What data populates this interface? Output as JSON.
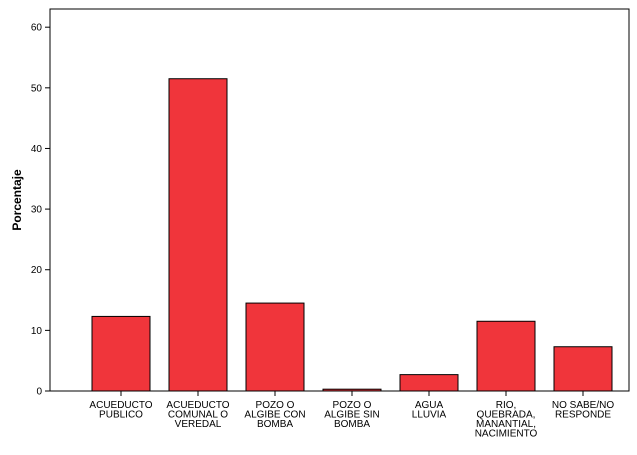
{
  "chart_data": {
    "type": "bar",
    "title": "",
    "xlabel": "",
    "ylabel": "Porcentaje",
    "ylim": [
      0,
      63
    ],
    "yticks": [
      0,
      10,
      20,
      30,
      40,
      50,
      60
    ],
    "grid": false,
    "categories": [
      [
        "ACUEDUCTO",
        "PUBLICO"
      ],
      [
        "ACUEDUCTO",
        "COMUNAL O",
        "VEREDAL"
      ],
      [
        "POZO O",
        "ALGIBE CON",
        "BOMBA"
      ],
      [
        "POZO O",
        "ALGIBE SIN",
        "BOMBA"
      ],
      [
        "AGUA",
        "LLUVIA"
      ],
      [
        "RIO,",
        "QUEBRADA,",
        "MANANTIAL,",
        "NACIMIENTO"
      ],
      [
        "NO SABE/NO",
        "RESPONDE"
      ]
    ],
    "values": [
      12.3,
      51.5,
      14.5,
      0.3,
      2.7,
      11.5,
      7.3
    ],
    "colors": {
      "bar_fill": "#f0353b",
      "bar_stroke": "#000000",
      "axis": "#000000",
      "background": "#ffffff"
    }
  }
}
